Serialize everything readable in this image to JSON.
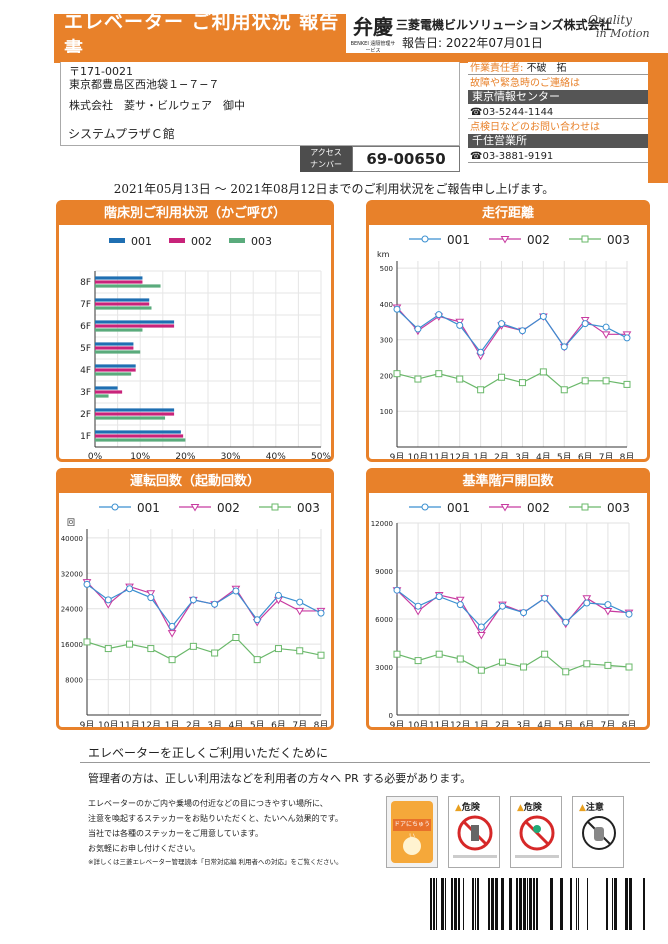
{
  "header": {
    "title": "エレベーター ご利用状況 報告書",
    "logo_mark": "弁慶",
    "logo_sub": "BENKEI 遠隔管理サービス",
    "company": "三菱電機ビルソリューションズ株式会社",
    "report_date": "報告日: 2022年07月01日",
    "brand_line1": "Quality",
    "brand_line2": "in Motion"
  },
  "address": {
    "postal": "〒171-0021",
    "line": "東京都豊島区西池袋１−７−７",
    "recipient": "株式会社　菱サ・ビルウェア　御中",
    "building": "システムプラザＣ館",
    "access_label_1": "アクセス",
    "access_label_2": "ナンバー",
    "access_number": "69-00650"
  },
  "contact": {
    "manager_label": "作業責任者:",
    "manager_name": "不破　拓",
    "emergency_label": "故障や緊急時のご連絡は",
    "emergency_center": "東京情報センター",
    "emergency_phone": "☎03-5244-1144",
    "inspection_label": "点検日などのお問い合わせは",
    "office": "千住営業所",
    "office_phone": "☎03-3881-9191"
  },
  "intro": "2021年05月13日 ～ 2021年08月12日までのご利用状況をご報告申し上げます。",
  "colors": {
    "orange": "#e8812a",
    "s001": "#1f6fb2",
    "s002": "#c8237a",
    "s003": "#5aab7c",
    "tri001": "#3a8fd0",
    "tri002": "#c83aa0",
    "sq003": "#6ab86a"
  },
  "charts": {
    "floor": {
      "title": "階床別ご利用状況（かご呼び）",
      "type": "bar",
      "legend": [
        "001",
        "002",
        "003"
      ],
      "categories": [
        "1F",
        "2F",
        "3F",
        "4F",
        "5F",
        "6F",
        "7F",
        "8F"
      ],
      "series": [
        {
          "name": "001",
          "values": [
            19,
            17.5,
            5,
            9,
            8.5,
            17.5,
            12,
            10.5
          ]
        },
        {
          "name": "002",
          "values": [
            19.5,
            17.5,
            6,
            9,
            8.5,
            17.5,
            12,
            10.5
          ]
        },
        {
          "name": "003",
          "values": [
            20,
            15.5,
            3,
            8,
            10,
            10.5,
            12.5,
            14.5
          ]
        }
      ],
      "xticks": [
        "0%",
        "10%",
        "20%",
        "30%",
        "40%",
        "50%"
      ],
      "xlim": [
        0,
        50
      ]
    },
    "distance": {
      "title": "走行距離",
      "unit": "km",
      "type": "line",
      "legend": [
        "001",
        "002",
        "003"
      ],
      "categories": [
        "9月",
        "10月",
        "11月",
        "12月",
        "1月",
        "2月",
        "3月",
        "4月",
        "5月",
        "6月",
        "7月",
        "8月"
      ],
      "yticks": [
        "100",
        "200",
        "300",
        "400",
        "500"
      ],
      "ylim": [
        0,
        520
      ],
      "series": [
        {
          "name": "001",
          "values": [
            385,
            330,
            370,
            340,
            265,
            345,
            325,
            365,
            280,
            345,
            335,
            305
          ]
        },
        {
          "name": "002",
          "values": [
            390,
            325,
            365,
            350,
            255,
            340,
            325,
            365,
            280,
            355,
            315,
            315
          ]
        },
        {
          "name": "003",
          "values": [
            205,
            190,
            205,
            190,
            160,
            195,
            180,
            210,
            160,
            185,
            185,
            175
          ]
        }
      ]
    },
    "operations": {
      "title": "運転回数（起動回数）",
      "unit": "回",
      "type": "line",
      "legend": [
        "001",
        "002",
        "003"
      ],
      "categories": [
        "9月",
        "10月",
        "11月",
        "12月",
        "1月",
        "2月",
        "3月",
        "4月",
        "5月",
        "6月",
        "7月",
        "8月"
      ],
      "yticks": [
        "8000",
        "16000",
        "24000",
        "32000",
        "40000"
      ],
      "ylim": [
        0,
        42000
      ],
      "series": [
        {
          "name": "001",
          "values": [
            29500,
            26000,
            28500,
            26500,
            20000,
            26000,
            25000,
            28000,
            21500,
            27000,
            25500,
            23000
          ]
        },
        {
          "name": "002",
          "values": [
            30000,
            25000,
            29000,
            27500,
            18500,
            26000,
            25000,
            28500,
            21000,
            26000,
            23500,
            23500
          ]
        },
        {
          "name": "003",
          "values": [
            16500,
            15000,
            16000,
            15000,
            12500,
            15500,
            14000,
            17500,
            12500,
            15000,
            14500,
            13500
          ]
        }
      ]
    },
    "door": {
      "title": "基準階戸開回数",
      "type": "line",
      "legend": [
        "001",
        "002",
        "003"
      ],
      "categories": [
        "9月",
        "10月",
        "11月",
        "12月",
        "1月",
        "2月",
        "3月",
        "4月",
        "5月",
        "6月",
        "7月",
        "8月"
      ],
      "yticks": [
        "0",
        "3000",
        "6000",
        "9000",
        "12000"
      ],
      "ylim": [
        0,
        12000
      ],
      "series": [
        {
          "name": "001",
          "values": [
            7800,
            6800,
            7400,
            6900,
            5500,
            6800,
            6400,
            7300,
            5800,
            7000,
            6900,
            6300
          ]
        },
        {
          "name": "002",
          "values": [
            7800,
            6500,
            7500,
            7200,
            5000,
            6900,
            6400,
            7300,
            5700,
            7300,
            6500,
            6400
          ]
        },
        {
          "name": "003",
          "values": [
            3800,
            3400,
            3800,
            3500,
            2800,
            3300,
            3000,
            3800,
            2700,
            3200,
            3100,
            3000
          ]
        }
      ]
    }
  },
  "notice": {
    "title": "エレベーターを正しくご利用いただくために",
    "lead": "管理者の方は、正しい利用法などを利用者の方々へ PR する必要があります。",
    "body1": "エレベーターのかご内や乗場の付近などの目につきやすい場所に、",
    "body2": "注意を喚起するステッカーをお貼りいただくと、たいへん効果的です。",
    "body3": "当社では各種のステッカーをご用意しています。",
    "body4": "お気軽にお申し付けください。",
    "footnote": "※詳しくは三菱エレベーター管理読本「日常対応編 利用者への対応」をご覧ください。",
    "sticker1": "ドアにちゅうい",
    "sticker2": "危険",
    "sticker3": "危険",
    "sticker4": "注意"
  }
}
